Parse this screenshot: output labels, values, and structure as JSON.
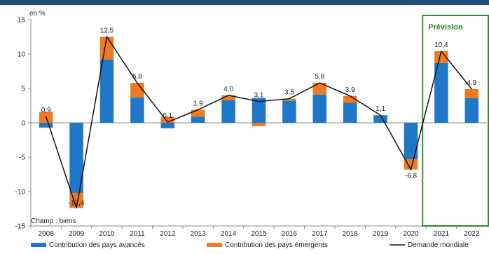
{
  "chart_data": {
    "type": "bar",
    "unit_label": "en %",
    "categories": [
      "2008",
      "2009",
      "2010",
      "2011",
      "2012",
      "2013",
      "2014",
      "2015",
      "2016",
      "2017",
      "2018",
      "2019",
      "2020",
      "2021",
      "2022"
    ],
    "series": [
      {
        "name": "Contribution des pays avancés",
        "kind": "bar",
        "color": "#1f77c8",
        "values": [
          -0.7,
          -10.2,
          9.2,
          3.7,
          -0.8,
          0.9,
          3.3,
          3.6,
          3.2,
          4.1,
          2.9,
          1.1,
          -5.3,
          8.7,
          3.6
        ]
      },
      {
        "name": "Contribution des pays émergents",
        "kind": "bar",
        "color": "#f07a20",
        "values": [
          1.6,
          -2.2,
          3.3,
          2.1,
          0.9,
          1.0,
          0.7,
          -0.5,
          0.3,
          1.7,
          1.0,
          0.0,
          -1.5,
          1.7,
          1.3
        ]
      },
      {
        "name": "Demande mondiale",
        "kind": "line",
        "color": "#111111",
        "values": [
          0.9,
          -12.4,
          12.5,
          5.8,
          0.1,
          1.9,
          4.0,
          3.1,
          3.5,
          5.8,
          3.9,
          1.1,
          -6.8,
          10.4,
          4.9
        ]
      }
    ],
    "data_labels": [
      "0,9",
      "-12,4",
      "12,5",
      "5,8",
      "0,1",
      "1,9",
      "4,0",
      "3,1",
      "3,5",
      "5,8",
      "3,9",
      "1,1",
      "-6,8",
      "10,4",
      "4,9"
    ],
    "y_ticks": [
      15,
      10,
      5,
      0,
      -5,
      -10,
      -15
    ],
    "ylim": [
      -15,
      15
    ],
    "forecast_label": "Prévision",
    "forecast_categories": [
      "2021",
      "2022"
    ],
    "forecast_color": "#2e8b2e",
    "scope_note": "Champ : biens",
    "grid": false,
    "legend_position": "bottom"
  }
}
